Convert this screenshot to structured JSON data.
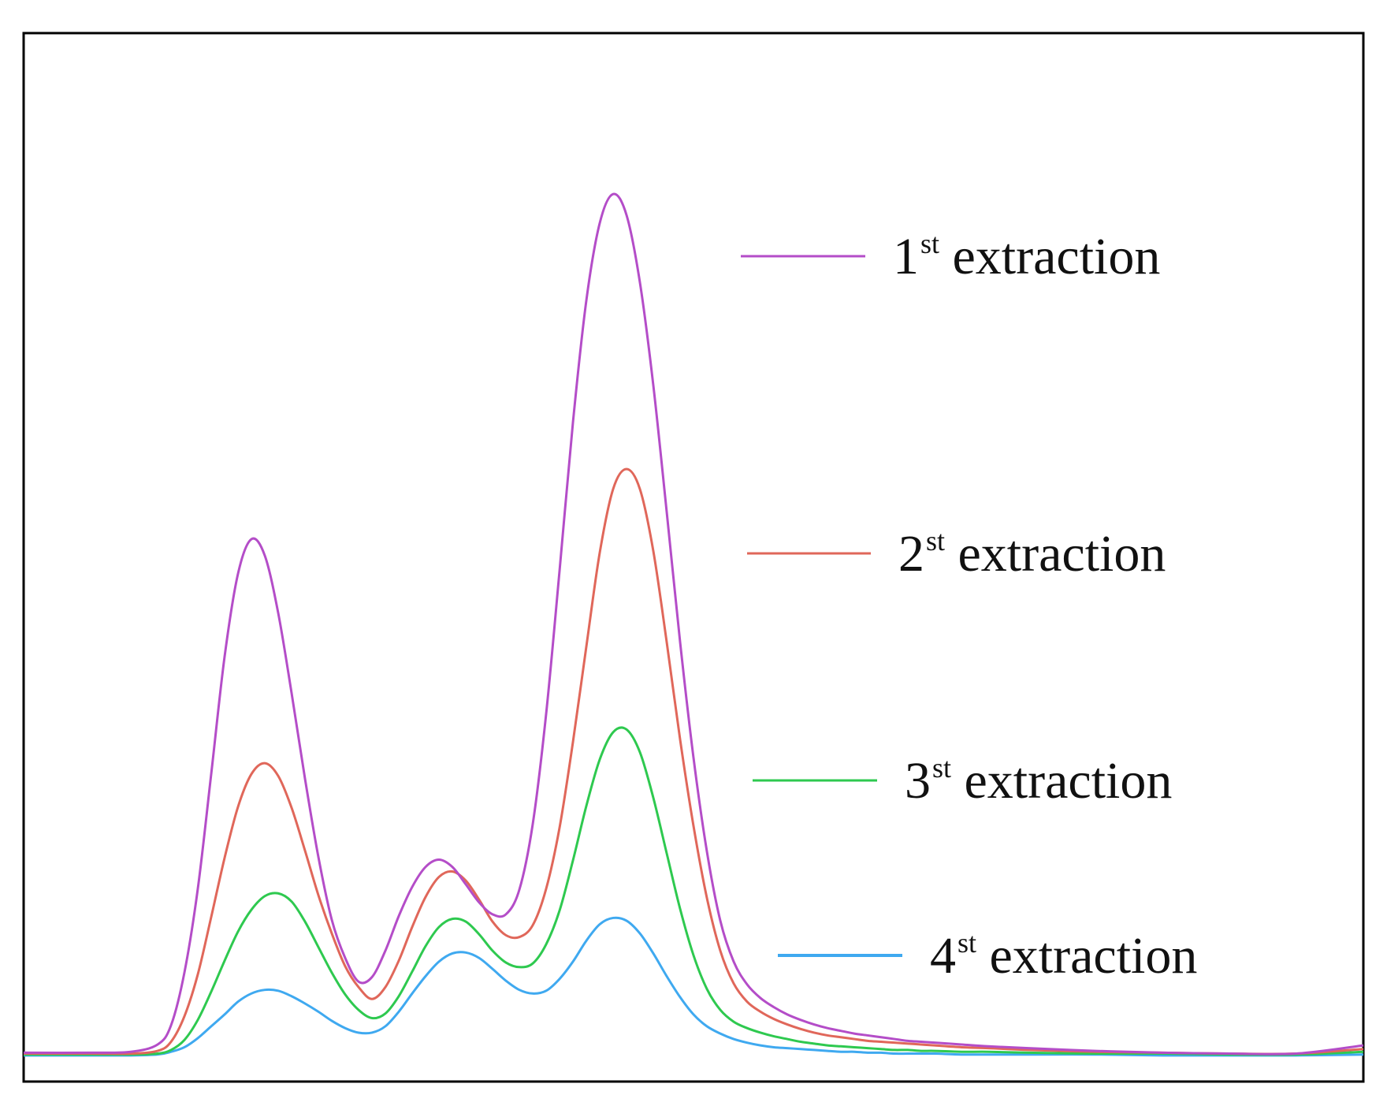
{
  "chart_data": {
    "type": "line",
    "title": "",
    "xlabel": "",
    "ylabel": "",
    "grid": false,
    "axis_ticks": false,
    "legend_placement": "right",
    "xlim": [
      0,
      100
    ],
    "ylim": [
      0,
      100
    ],
    "x": [
      0,
      5,
      8,
      10,
      11,
      12,
      13,
      14,
      15,
      16,
      17,
      18,
      19,
      20,
      21,
      22,
      23,
      24,
      25,
      26,
      27,
      28,
      29,
      30,
      31,
      32,
      33,
      34,
      35,
      36,
      37,
      38,
      39,
      40,
      41,
      42,
      43,
      44,
      45,
      46,
      47,
      48,
      49,
      50,
      51,
      52,
      53,
      54,
      55,
      56,
      57,
      58,
      59,
      60,
      61,
      62,
      63,
      64,
      65,
      66,
      67,
      68,
      70,
      72,
      75,
      80,
      85,
      90,
      95,
      100
    ],
    "series": [
      {
        "name": "1st extraction",
        "legend_base": "1",
        "legend_sup": "st",
        "legend_rest": " extraction",
        "color": "#b44dc8",
        "values": [
          0.4,
          0.4,
          0.5,
          1.3,
          3.4,
          9.2,
          18.4,
          31.0,
          43.9,
          53.0,
          56.8,
          55.0,
          48.7,
          39.9,
          30.5,
          21.9,
          15.0,
          10.8,
          8.2,
          8.7,
          11.6,
          15.4,
          18.6,
          20.8,
          21.6,
          20.8,
          18.9,
          16.9,
          15.6,
          15.6,
          18.3,
          25.5,
          37.6,
          53.3,
          69.6,
          83.0,
          91.5,
          94.7,
          92.4,
          85.0,
          73.7,
          59.8,
          45.5,
          32.8,
          22.5,
          14.9,
          10.4,
          7.9,
          6.4,
          5.4,
          4.6,
          4.0,
          3.5,
          3.1,
          2.8,
          2.5,
          2.3,
          2.1,
          1.9,
          1.7,
          1.6,
          1.5,
          1.3,
          1.1,
          0.9,
          0.6,
          0.4,
          0.3,
          0.3,
          1.2
        ]
      },
      {
        "name": "2st extraction",
        "legend_base": "2",
        "legend_sup": "st",
        "legend_rest": " extraction",
        "color": "#e0675a",
        "values": [
          0.3,
          0.3,
          0.3,
          0.6,
          1.6,
          4.4,
          9.0,
          15.3,
          21.8,
          27.4,
          31.0,
          32.2,
          30.8,
          27.3,
          22.6,
          17.7,
          13.5,
          9.9,
          7.6,
          6.3,
          7.6,
          10.5,
          14.2,
          17.5,
          19.7,
          20.3,
          19.3,
          17.2,
          14.8,
          13.3,
          13.1,
          14.4,
          18.4,
          25.1,
          34.5,
          45.0,
          55.3,
          62.3,
          64.5,
          62.3,
          55.5,
          45.5,
          34.8,
          25.3,
          17.4,
          11.6,
          8.0,
          6.0,
          4.9,
          4.1,
          3.5,
          3.0,
          2.6,
          2.3,
          2.1,
          1.9,
          1.7,
          1.6,
          1.5,
          1.4,
          1.3,
          1.2,
          1.0,
          0.9,
          0.7,
          0.5,
          0.4,
          0.3,
          0.3,
          0.8
        ]
      },
      {
        "name": "3st extraction",
        "legend_base": "3",
        "legend_sup": "st",
        "legend_rest": " extraction",
        "color": "#2ec94f",
        "values": [
          0.2,
          0.2,
          0.2,
          0.3,
          0.7,
          1.8,
          4.0,
          7.1,
          10.5,
          13.7,
          16.1,
          17.6,
          17.9,
          17.0,
          14.8,
          12.0,
          9.2,
          6.8,
          5.1,
          4.2,
          4.7,
          6.6,
          9.3,
          12.1,
          14.2,
          15.1,
          14.8,
          13.4,
          11.6,
          10.3,
          9.8,
          10.2,
          12.3,
          16.0,
          21.5,
          27.5,
          32.6,
          35.6,
          35.9,
          33.4,
          28.4,
          22.3,
          16.2,
          11.1,
          7.4,
          5.1,
          3.8,
          3.1,
          2.6,
          2.2,
          1.9,
          1.6,
          1.4,
          1.2,
          1.1,
          1.0,
          0.9,
          0.8,
          0.7,
          0.7,
          0.6,
          0.6,
          0.5,
          0.5,
          0.4,
          0.3,
          0.3,
          0.2,
          0.2,
          0.5
        ]
      },
      {
        "name": "4st extraction",
        "legend_base": "4",
        "legend_sup": "st",
        "legend_rest": " extraction",
        "color": "#3fa9f0",
        "values": [
          0.1,
          0.1,
          0.1,
          0.2,
          0.5,
          1.0,
          2.0,
          3.3,
          4.6,
          6.0,
          6.9,
          7.3,
          7.2,
          6.6,
          5.8,
          4.9,
          3.9,
          3.1,
          2.6,
          2.6,
          3.3,
          4.9,
          6.9,
          8.8,
          10.4,
          11.3,
          11.4,
          10.8,
          9.6,
          8.3,
          7.3,
          6.9,
          7.2,
          8.5,
          10.4,
          12.7,
          14.5,
          15.2,
          14.9,
          13.5,
          11.3,
          8.8,
          6.5,
          4.6,
          3.3,
          2.5,
          1.9,
          1.5,
          1.2,
          1.0,
          0.9,
          0.8,
          0.7,
          0.6,
          0.5,
          0.5,
          0.4,
          0.4,
          0.3,
          0.3,
          0.3,
          0.3,
          0.2,
          0.2,
          0.2,
          0.2,
          0.1,
          0.1,
          0.1,
          0.2
        ]
      }
    ]
  }
}
